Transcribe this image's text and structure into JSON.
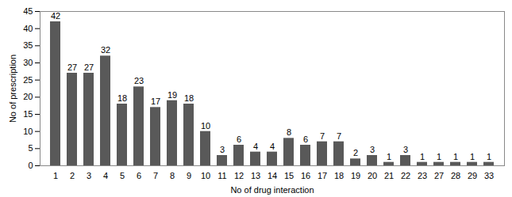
{
  "chart_data": {
    "type": "bar",
    "x_label": "No of drug interaction",
    "y_label": "No of prescription",
    "categories": [
      "1",
      "2",
      "3",
      "4",
      "5",
      "6",
      "7",
      "8",
      "9",
      "10",
      "11",
      "12",
      "13",
      "14",
      "15",
      "16",
      "17",
      "18",
      "19",
      "20",
      "21",
      "22",
      "23",
      "27",
      "28",
      "29",
      "33"
    ],
    "values": [
      42,
      27,
      27,
      32,
      18,
      23,
      17,
      19,
      18,
      10,
      3,
      6,
      4,
      4,
      8,
      6,
      7,
      7,
      2,
      3,
      1,
      3,
      1,
      1,
      1,
      1,
      1
    ],
    "color": "#595959",
    "ylim": [
      0,
      45
    ],
    "yticks": [
      0,
      5,
      10,
      15,
      20,
      25,
      30,
      35,
      40,
      45
    ],
    "grid": false,
    "data_labels": true
  }
}
